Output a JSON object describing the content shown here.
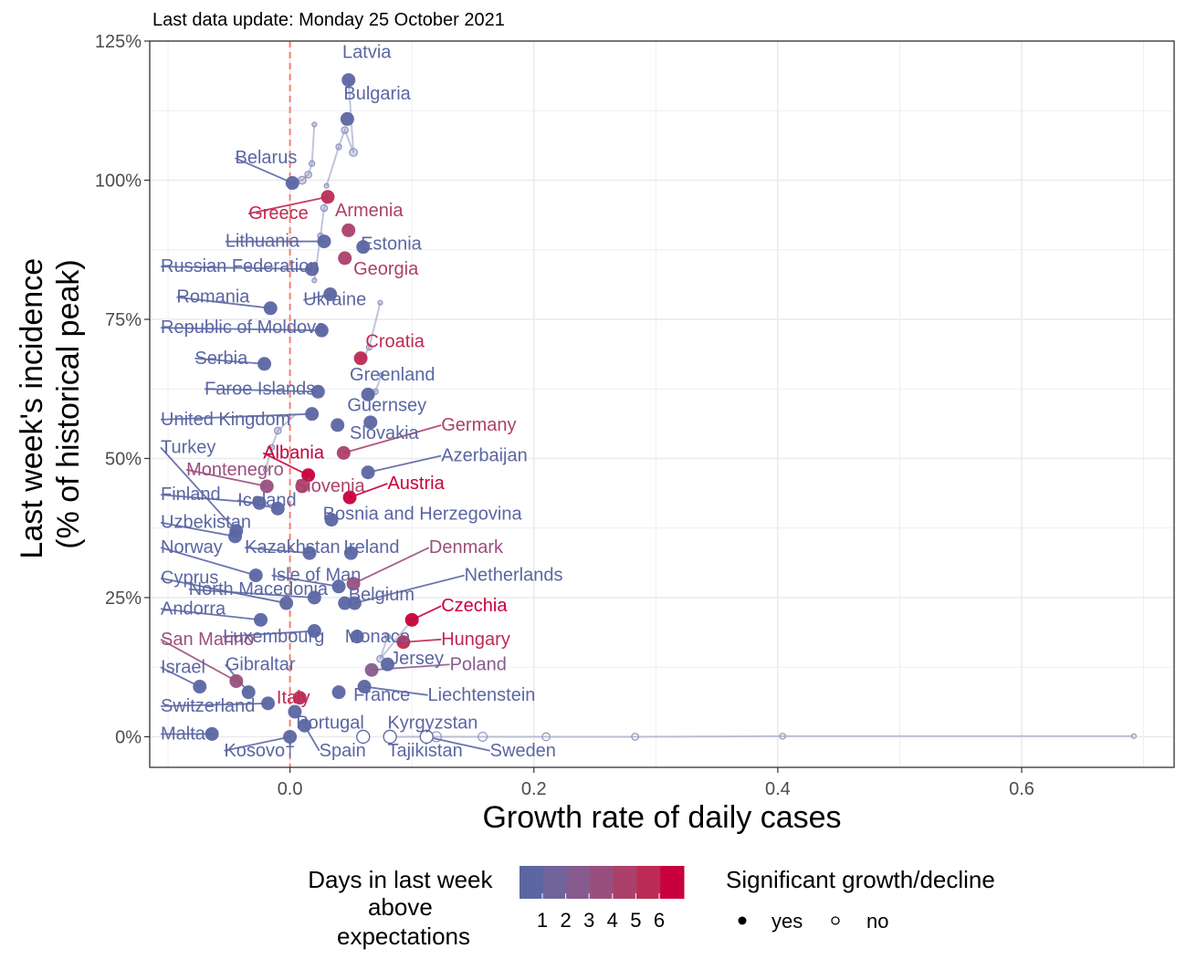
{
  "chart_data": {
    "type": "scatter",
    "subtitle": "Last data update: Monday 25 October 2021",
    "xlabel": "Growth rate of daily cases",
    "ylabel": [
      "Last week's incidence",
      "(% of historical peak)"
    ],
    "xlim": [
      -0.115,
      0.725
    ],
    "ylim": [
      -5.5,
      125
    ],
    "x_ticks": [
      0.0,
      0.2,
      0.4,
      0.6
    ],
    "x_tick_labels": [
      "0.0",
      "0.2",
      "0.4",
      "0.6"
    ],
    "y_ticks": [
      0,
      25,
      50,
      75,
      100,
      125
    ],
    "y_tick_labels": [
      "0%",
      "25%",
      "50%",
      "75%",
      "100%",
      "125%"
    ],
    "reference_line_x": 0,
    "grid": true,
    "colors": {
      "scale": [
        "#5b66a3",
        "#71649b",
        "#865c8e",
        "#994f7d",
        "#ab406a",
        "#bc2b53",
        "#c8003b"
      ],
      "reference_line": "#f08070",
      "background": "#ffffff",
      "gridline": "#ebebeb",
      "axis_text": "#4d4d4d"
    },
    "points": [
      {
        "country": "Latvia",
        "x": 0.048,
        "y": 118,
        "days": 0,
        "sig": true,
        "label": "Latvia",
        "lx": 0.043,
        "ly": 122
      },
      {
        "country": "Bulgaria",
        "x": 0.047,
        "y": 111,
        "days": 0,
        "sig": true,
        "label": "Bulgaria",
        "lx": 0.044,
        "y2": 0,
        "ly": 114.5
      },
      {
        "country": "Belarus",
        "x": 0.002,
        "y": 99.5,
        "days": 0,
        "sig": true,
        "label": "Belarus",
        "lx": -0.045,
        "ly": 103
      },
      {
        "country": "Greece",
        "x": 0.031,
        "y": 97,
        "days": 5,
        "sig": true,
        "label": "Greece",
        "lx": -0.034,
        "ly": 93
      },
      {
        "country": "Armenia",
        "x": 0.048,
        "y": 91,
        "days": 4,
        "sig": true,
        "label": "Armenia",
        "lx": 0.037,
        "ly": 93.5
      },
      {
        "country": "Lithuania",
        "x": 0.028,
        "y": 89,
        "days": 0,
        "sig": true,
        "label": "Lithuania",
        "lx": -0.053,
        "ly": 88
      },
      {
        "country": "Estonia",
        "x": 0.06,
        "y": 88,
        "days": 0,
        "sig": true,
        "label": "Estonia",
        "lx": 0.058,
        "ly": 87.5
      },
      {
        "country": "Russian Federation",
        "x": 0.018,
        "y": 84,
        "days": 0,
        "sig": true,
        "label": "Russian Federation",
        "lx": -0.106,
        "ly": 83.5
      },
      {
        "country": "Georgia",
        "x": 0.045,
        "y": 86,
        "days": 4,
        "sig": true,
        "label": "Georgia",
        "lx": 0.052,
        "ly": 83
      },
      {
        "country": "Romania",
        "x": -0.016,
        "y": 77,
        "days": 0,
        "sig": true,
        "label": "Romania",
        "lx": -0.093,
        "ly": 78
      },
      {
        "country": "Ukraine",
        "x": 0.033,
        "y": 79.5,
        "days": 0,
        "sig": true,
        "label": "Ukraine",
        "lx": 0.011,
        "ly": 77.5
      },
      {
        "country": "Republic of Moldova",
        "x": 0.026,
        "y": 73,
        "days": 0,
        "sig": true,
        "label": "Republic of Moldova",
        "lx": -0.106,
        "ly": 72.5
      },
      {
        "country": "Croatia",
        "x": 0.058,
        "y": 68,
        "days": 5,
        "sig": true,
        "label": "Croatia",
        "lx": 0.062,
        "ly": 70
      },
      {
        "country": "Serbia",
        "x": -0.021,
        "y": 67,
        "days": 0,
        "sig": true,
        "label": "Serbia",
        "lx": -0.078,
        "ly": 67
      },
      {
        "country": "Greenland",
        "x": 0.064,
        "y": 61.5,
        "days": 0,
        "sig": true,
        "label": "Greenland",
        "lx": 0.049,
        "ly": 64
      },
      {
        "country": "Faroe Islands",
        "x": 0.023,
        "y": 62,
        "days": 0,
        "sig": true,
        "label": "Faroe Islands",
        "lx": -0.07,
        "ly": 61.5
      },
      {
        "country": "Guernsey",
        "x": 0.066,
        "y": 56.5,
        "days": 0,
        "sig": true,
        "label": "Guernsey",
        "lx": 0.047,
        "ly": 58.5
      },
      {
        "country": "United Kingdom",
        "x": 0.018,
        "y": 58,
        "days": 0,
        "sig": true,
        "label": "United Kingdom",
        "lx": -0.106,
        "ly": 56
      },
      {
        "country": "Germany",
        "x": 0.044,
        "y": 51,
        "days": 4,
        "sig": true,
        "label": "Germany",
        "lx": 0.124,
        "ly": 55
      },
      {
        "country": "Slovakia",
        "x": 0.039,
        "y": 56,
        "days": 0,
        "sig": true,
        "label": "Slovakia",
        "lx": 0.049,
        "ly": 53.5
      },
      {
        "country": "Turkey",
        "x": -0.044,
        "y": 37,
        "days": 0,
        "sig": true,
        "label": "Turkey",
        "lx": -0.106,
        "ly": 51
      },
      {
        "country": "Albania",
        "x": 0.015,
        "y": 47,
        "days": 6,
        "sig": true,
        "label": "Albania",
        "lx": -0.022,
        "ly": 50
      },
      {
        "country": "Azerbaijan",
        "x": 0.064,
        "y": 47.5,
        "days": 0,
        "sig": true,
        "label": "Azerbaijan",
        "lx": 0.124,
        "ly": 49.5
      },
      {
        "country": "Montenegro",
        "x": -0.019,
        "y": 45,
        "days": 3,
        "sig": true,
        "label": "Montenegro",
        "lx": -0.085,
        "ly": 47
      },
      {
        "country": "Slovenia",
        "x": 0.01,
        "y": 45,
        "days": 4,
        "sig": true,
        "label": "Slovenia",
        "lx": 0.004,
        "ly": 44
      },
      {
        "country": "Austria",
        "x": 0.049,
        "y": 43,
        "days": 6,
        "sig": true,
        "label": "Austria",
        "lx": 0.08,
        "ly": 44.5
      },
      {
        "country": "Finland",
        "x": -0.025,
        "y": 42,
        "days": 0,
        "sig": true,
        "label": "Finland",
        "lx": -0.106,
        "ly": 42.5
      },
      {
        "country": "Iceland",
        "x": -0.01,
        "y": 41,
        "days": 0,
        "sig": true,
        "label": "Iceland",
        "lx": -0.043,
        "ly": 41.5
      },
      {
        "country": "Bosnia and Herzegovina",
        "x": 0.034,
        "y": 39,
        "days": 0,
        "sig": true,
        "label": "Bosnia and Herzegovina",
        "lx": 0.027,
        "ly": 39
      },
      {
        "country": "Uzbekistan",
        "x": -0.045,
        "y": 36,
        "days": 0,
        "sig": true,
        "label": "Uzbekistan",
        "lx": -0.106,
        "ly": 37.5
      },
      {
        "country": "Norway",
        "x": -0.028,
        "y": 29,
        "days": 0,
        "sig": true,
        "label": "Norway",
        "lx": -0.106,
        "ly": 33
      },
      {
        "country": "Kazakhstan",
        "x": 0.016,
        "y": 33,
        "days": 0,
        "sig": true,
        "label": "Kazakhstan",
        "lx": -0.037,
        "ly": 33
      },
      {
        "country": "Ireland",
        "x": 0.05,
        "y": 33,
        "days": 0,
        "sig": true,
        "label": "Ireland",
        "lx": 0.044,
        "ly": 33
      },
      {
        "country": "Denmark",
        "x": 0.052,
        "y": 27.5,
        "days": 3,
        "sig": true,
        "label": "Denmark",
        "lx": 0.114,
        "ly": 33
      },
      {
        "country": "Isle of Man",
        "x": 0.04,
        "y": 27,
        "days": 0,
        "sig": true,
        "label": "Isle of Man",
        "lx": -0.015,
        "ly": 28
      },
      {
        "country": "Netherlands",
        "x": 0.053,
        "y": 24,
        "days": 0,
        "sig": true,
        "label": "Netherlands",
        "lx": 0.143,
        "ly": 28
      },
      {
        "country": "Cyprus",
        "x": -0.003,
        "y": 24,
        "days": 0,
        "sig": true,
        "label": "Cyprus",
        "lx": -0.106,
        "ly": 27.5
      },
      {
        "country": "North Macedonia",
        "x": 0.02,
        "y": 25,
        "days": 0,
        "sig": true,
        "label": "North Macedonia",
        "lx": -0.083,
        "ly": 25.5
      },
      {
        "country": "Belgium",
        "x": 0.045,
        "y": 24,
        "days": 0,
        "sig": true,
        "label": "Belgium",
        "lx": 0.048,
        "ly": 24.5
      },
      {
        "country": "Czechia",
        "x": 0.1,
        "y": 21,
        "days": 6,
        "sig": true,
        "label": "Czechia",
        "lx": 0.124,
        "ly": 22.5
      },
      {
        "country": "Andorra",
        "x": -0.024,
        "y": 21,
        "days": 0,
        "sig": true,
        "label": "Andorra",
        "lx": -0.106,
        "ly": 22
      },
      {
        "country": "Monaco",
        "x": 0.055,
        "y": 18,
        "days": 0,
        "sig": true,
        "label": "Monaco",
        "lx": 0.045,
        "ly": 17
      },
      {
        "country": "Luxembourg",
        "x": 0.02,
        "y": 19,
        "days": 0,
        "sig": true,
        "label": "Luxembourg",
        "lx": -0.055,
        "ly": 17
      },
      {
        "country": "Hungary",
        "x": 0.093,
        "y": 17,
        "days": 5,
        "sig": true,
        "label": "Hungary",
        "lx": 0.124,
        "ly": 16.5
      },
      {
        "country": "San Marino",
        "x": -0.044,
        "y": 10,
        "days": 3,
        "sig": true,
        "label": "San Marino",
        "lx": -0.106,
        "ly": 16.5
      },
      {
        "country": "Poland",
        "x": 0.067,
        "y": 12,
        "days": 2,
        "sig": true,
        "label": "Poland",
        "lx": 0.131,
        "ly": 12
      },
      {
        "country": "Jersey",
        "x": 0.08,
        "y": 13,
        "days": 0,
        "sig": true,
        "label": "Jersey",
        "lx": 0.082,
        "ly": 13
      },
      {
        "country": "Gibraltar",
        "x": -0.034,
        "y": 8,
        "days": 0,
        "sig": true,
        "label": "Gibraltar",
        "lx": -0.053,
        "ly": 12
      },
      {
        "country": "Israel",
        "x": -0.074,
        "y": 9,
        "days": 0,
        "sig": true,
        "label": "Israel",
        "lx": -0.106,
        "ly": 11.5
      },
      {
        "country": "France",
        "x": 0.04,
        "y": 8,
        "days": 0,
        "sig": true,
        "label": "France",
        "lx": 0.052,
        "ly": 6.5
      },
      {
        "country": "Liechtenstein",
        "x": 0.061,
        "y": 9,
        "days": 0,
        "sig": true,
        "label": "Liechtenstein",
        "lx": 0.113,
        "ly": 6.5
      },
      {
        "country": "Italy",
        "x": 0.008,
        "y": 7,
        "days": 5,
        "sig": true,
        "label": "Italy",
        "lx": -0.011,
        "ly": 6
      },
      {
        "country": "Switzerland",
        "x": -0.018,
        "y": 6,
        "days": 0,
        "sig": true,
        "label": "Switzerland",
        "lx": -0.106,
        "ly": 4.5
      },
      {
        "country": "Portugal",
        "x": 0.004,
        "y": 4.5,
        "days": 0,
        "sig": true,
        "label": "Portugal",
        "lx": 0.005,
        "ly": 1.5
      },
      {
        "country": "Kyrgyzstan",
        "x": 0.06,
        "y": 0,
        "days": 0,
        "sig": false,
        "label": "Kyrgyzstan",
        "lx": 0.08,
        "ly": 1.5
      },
      {
        "country": "Malta",
        "x": -0.064,
        "y": 0.5,
        "days": 0,
        "sig": true,
        "label": "Malta",
        "lx": -0.106,
        "ly": -0.5
      },
      {
        "country": "Kosovo†",
        "x": 0.0,
        "y": 0,
        "days": 0,
        "sig": true,
        "label": "Kosovo†",
        "lx": -0.054,
        "ly": -3.5
      },
      {
        "country": "Spain",
        "x": 0.012,
        "y": 2,
        "days": 0,
        "sig": true,
        "label": "Spain",
        "lx": 0.024,
        "ly": -3.5
      },
      {
        "country": "Tajikistan",
        "x": 0.082,
        "y": 0,
        "days": 0,
        "sig": false,
        "label": "Tajikistan",
        "lx": 0.08,
        "ly": -3.5
      },
      {
        "country": "Sweden",
        "x": 0.112,
        "y": 0,
        "days": 0,
        "sig": false,
        "label": "Sweden",
        "lx": 0.164,
        "ly": -3.5
      }
    ],
    "trails": [
      [
        [
          0.692,
          0.1
        ],
        [
          0.404,
          0.1
        ],
        [
          0.283,
          0
        ],
        [
          0.21,
          0
        ],
        [
          0.158,
          0
        ],
        [
          0.12,
          0
        ],
        [
          0.082,
          0
        ]
      ],
      [
        [
          0.03,
          99
        ],
        [
          0.04,
          106
        ],
        [
          0.045,
          109
        ],
        [
          0.052,
          105
        ],
        [
          0.048,
          118
        ]
      ],
      [
        [
          0.02,
          110
        ],
        [
          0.018,
          103
        ],
        [
          0.015,
          101
        ],
        [
          0.01,
          100
        ],
        [
          0.002,
          99.5
        ]
      ],
      [
        [
          0.02,
          82
        ],
        [
          0.025,
          90
        ],
        [
          0.028,
          95
        ],
        [
          0.031,
          97
        ]
      ],
      [
        [
          0.074,
          78
        ],
        [
          0.065,
          70
        ],
        [
          0.06,
          68
        ],
        [
          0.058,
          68
        ]
      ],
      [
        [
          0.075,
          65
        ],
        [
          0.07,
          62
        ],
        [
          0.064,
          61.5
        ]
      ],
      [
        [
          0.09,
          17
        ],
        [
          0.08,
          18
        ],
        [
          0.074,
          14
        ],
        [
          0.1,
          21
        ]
      ],
      [
        [
          -0.02,
          48
        ],
        [
          -0.015,
          52
        ],
        [
          -0.01,
          55
        ],
        [
          0.005,
          58
        ]
      ]
    ],
    "legend": {
      "color_title": [
        "Days in last week",
        "above",
        "expectations"
      ],
      "color_labels": [
        "1",
        "2",
        "3",
        "4",
        "5",
        "6"
      ],
      "shape_title": "Significant growth/decline",
      "shape_labels": [
        "yes",
        "no"
      ]
    }
  }
}
